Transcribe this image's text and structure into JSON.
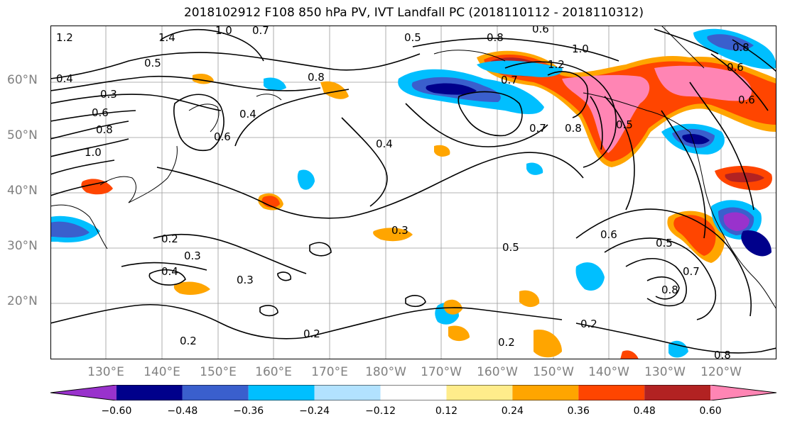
{
  "title": "2018102912 F108 850 hPa PV, IVT Landfall PC (2018110112 - 2018110312)",
  "lat_labels": [
    "60°N",
    "50°N",
    "40°N",
    "30°N",
    "20°N"
  ],
  "lon_labels": [
    "130°E",
    "140°E",
    "150°E",
    "160°E",
    "170°E",
    "180°W",
    "170°W",
    "160°W",
    "150°W",
    "140°W",
    "130°W",
    "120°W"
  ],
  "contour_labels": [
    "1.2",
    "1.4",
    "1.0",
    "0.7",
    "0.5",
    "0.8",
    "0.6",
    "1.0",
    "0.5",
    "0.4",
    "0.3",
    "0.6",
    "0.8",
    "1.0",
    "0.4",
    "0.8",
    "0.6",
    "0.4",
    "0.3",
    "0.2",
    "0.3",
    "0.4",
    "0.3",
    "0.2",
    "0.2",
    "0.5",
    "0.6",
    "0.5",
    "0.8",
    "0.2",
    "0.2",
    "0.8",
    "0.7",
    "0.8",
    "0.5",
    "1.2",
    "0.7",
    "0.6",
    "0.7",
    "0.8",
    "0.6"
  ],
  "colorbar": {
    "colors": [
      "#9932CC",
      "#00008B",
      "#3A5FCD",
      "#00BFFF",
      "#B2E2FF",
      "#FFFFFF",
      "#FFEC8B",
      "#FFA500",
      "#FF4500",
      "#B22222",
      "#FF85B4"
    ],
    "tick_labels": [
      "−0.60",
      "−0.48",
      "−0.36",
      "−0.24",
      "−0.12",
      "0.12",
      "0.24",
      "0.36",
      "0.48",
      "0.60"
    ]
  }
}
